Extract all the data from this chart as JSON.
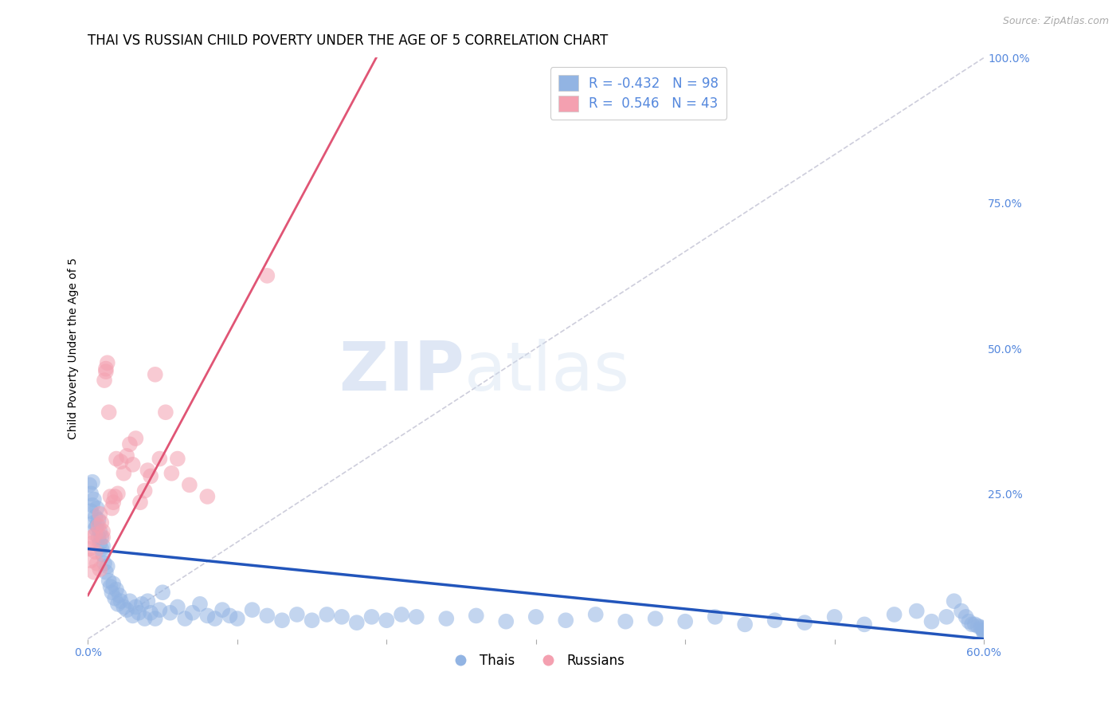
{
  "title": "THAI VS RUSSIAN CHILD POVERTY UNDER THE AGE OF 5 CORRELATION CHART",
  "source": "Source: ZipAtlas.com",
  "xlabel": "",
  "ylabel": "Child Poverty Under the Age of 5",
  "xmin": 0.0,
  "xmax": 0.6,
  "ymin": 0.0,
  "ymax": 1.0,
  "yticks": [
    0.0,
    0.25,
    0.5,
    0.75,
    1.0
  ],
  "ytick_labels": [
    "",
    "25.0%",
    "50.0%",
    "75.0%",
    "100.0%"
  ],
  "xticks": [
    0.0,
    0.1,
    0.2,
    0.3,
    0.4,
    0.5,
    0.6
  ],
  "xtick_labels": [
    "0.0%",
    "",
    "",
    "",
    "",
    "",
    "60.0%"
  ],
  "thai_color": "#92b4e3",
  "russian_color": "#f4a0b0",
  "thai_line_color": "#2255bb",
  "russian_line_color": "#e05575",
  "diag_line_color": "#c8c8d8",
  "watermark_zip": "ZIP",
  "watermark_atlas": "atlas",
  "legend_thai_r": "-0.432",
  "legend_thai_n": "98",
  "legend_russian_r": "0.546",
  "legend_russian_n": "43",
  "tick_color": "#5588dd",
  "grid_color": "#ddddee",
  "title_fontsize": 12,
  "label_fontsize": 10,
  "tick_fontsize": 10,
  "thai_scatter_x": [
    0.001,
    0.002,
    0.002,
    0.003,
    0.003,
    0.004,
    0.004,
    0.005,
    0.005,
    0.006,
    0.006,
    0.007,
    0.007,
    0.008,
    0.008,
    0.009,
    0.009,
    0.01,
    0.01,
    0.011,
    0.012,
    0.013,
    0.014,
    0.015,
    0.016,
    0.017,
    0.018,
    0.019,
    0.02,
    0.021,
    0.022,
    0.024,
    0.026,
    0.028,
    0.03,
    0.032,
    0.034,
    0.036,
    0.038,
    0.04,
    0.042,
    0.045,
    0.048,
    0.05,
    0.055,
    0.06,
    0.065,
    0.07,
    0.075,
    0.08,
    0.085,
    0.09,
    0.095,
    0.1,
    0.11,
    0.12,
    0.13,
    0.14,
    0.15,
    0.16,
    0.17,
    0.18,
    0.19,
    0.2,
    0.21,
    0.22,
    0.24,
    0.26,
    0.28,
    0.3,
    0.32,
    0.34,
    0.36,
    0.38,
    0.4,
    0.42,
    0.44,
    0.46,
    0.48,
    0.5,
    0.52,
    0.54,
    0.555,
    0.565,
    0.575,
    0.58,
    0.585,
    0.588,
    0.59,
    0.592,
    0.594,
    0.596,
    0.598,
    0.599,
    0.6,
    0.6,
    0.6,
    0.6
  ],
  "thai_scatter_y": [
    0.265,
    0.22,
    0.25,
    0.23,
    0.27,
    0.2,
    0.24,
    0.21,
    0.19,
    0.225,
    0.195,
    0.175,
    0.205,
    0.165,
    0.185,
    0.155,
    0.175,
    0.145,
    0.16,
    0.13,
    0.115,
    0.125,
    0.1,
    0.09,
    0.08,
    0.095,
    0.07,
    0.085,
    0.06,
    0.075,
    0.065,
    0.055,
    0.05,
    0.065,
    0.04,
    0.055,
    0.045,
    0.06,
    0.035,
    0.065,
    0.045,
    0.035,
    0.05,
    0.08,
    0.045,
    0.055,
    0.035,
    0.045,
    0.06,
    0.04,
    0.035,
    0.05,
    0.04,
    0.035,
    0.05,
    0.04,
    0.032,
    0.042,
    0.032,
    0.042,
    0.038,
    0.028,
    0.038,
    0.032,
    0.042,
    0.038,
    0.035,
    0.04,
    0.03,
    0.038,
    0.032,
    0.042,
    0.03,
    0.035,
    0.03,
    0.038,
    0.025,
    0.032,
    0.028,
    0.038,
    0.025,
    0.042,
    0.048,
    0.03,
    0.038,
    0.065,
    0.048,
    0.038,
    0.03,
    0.025,
    0.025,
    0.022,
    0.02,
    0.018,
    0.015,
    0.015,
    0.012,
    0.01
  ],
  "russian_scatter_x": [
    0.001,
    0.002,
    0.003,
    0.003,
    0.004,
    0.005,
    0.005,
    0.006,
    0.007,
    0.008,
    0.008,
    0.009,
    0.01,
    0.01,
    0.011,
    0.012,
    0.012,
    0.013,
    0.014,
    0.015,
    0.016,
    0.017,
    0.018,
    0.019,
    0.02,
    0.022,
    0.024,
    0.026,
    0.028,
    0.03,
    0.032,
    0.035,
    0.038,
    0.04,
    0.042,
    0.045,
    0.048,
    0.052,
    0.056,
    0.06,
    0.068,
    0.08,
    0.12
  ],
  "russian_scatter_y": [
    0.155,
    0.135,
    0.165,
    0.175,
    0.115,
    0.15,
    0.18,
    0.13,
    0.195,
    0.12,
    0.215,
    0.2,
    0.185,
    0.175,
    0.445,
    0.46,
    0.465,
    0.475,
    0.39,
    0.245,
    0.225,
    0.235,
    0.245,
    0.31,
    0.25,
    0.305,
    0.285,
    0.315,
    0.335,
    0.3,
    0.345,
    0.235,
    0.255,
    0.29,
    0.28,
    0.455,
    0.31,
    0.39,
    0.285,
    0.31,
    0.265,
    0.245,
    0.625
  ],
  "thai_line_x0": 0.0,
  "thai_line_x1": 0.6,
  "thai_line_y0": 0.155,
  "thai_line_y1": 0.0,
  "russian_line_x0": 0.0,
  "russian_line_x1": 0.12,
  "russian_line_y0": 0.075,
  "russian_line_y1": 0.65
}
